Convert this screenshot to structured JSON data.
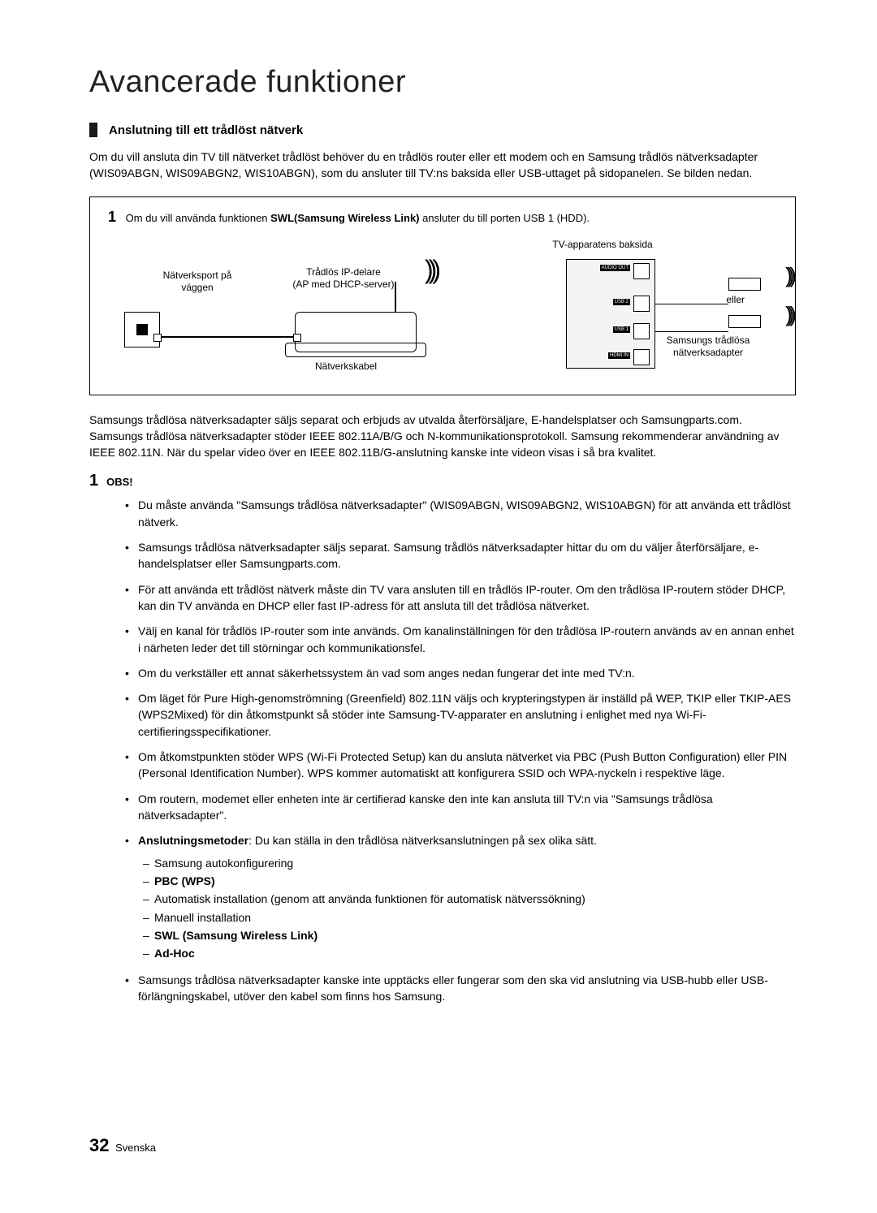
{
  "page": {
    "title": "Avancerade funktioner",
    "section_title": "Anslutning till ett trådlöst nätverk",
    "intro": "Om du vill ansluta din TV till nätverket trådlöst behöver du en trådlös router eller ett modem och en Samsung trådlös nätverksadapter (WIS09ABGN, WIS09ABGN2, WIS10ABGN), som du ansluter till TV:ns baksida eller USB-uttaget på sidopanelen. Se bilden nedan."
  },
  "diagram": {
    "note_num": "1",
    "note_pre": "Om du vill använda funktionen ",
    "note_bold": "SWL(Samsung Wireless Link)",
    "note_post": " ansluter du till porten USB 1 (HDD).",
    "label_tv_back": "TV-apparatens baksida",
    "label_wall_port": "Nätverksport på väggen",
    "label_router_1": "Trådlös IP-delare",
    "label_router_2": "(AP med DHCP-server)",
    "label_cable": "Nätverkskabel",
    "label_or": "eller",
    "label_adapter_1": "Samsungs trådlösa",
    "label_adapter_2": "nätverksadapter",
    "port_audio": "AUDIO OUT",
    "port_usb2": "USB 2",
    "port_usb1": "USB 1",
    "port_hdmi": "HDMI IN"
  },
  "mid_para": "Samsungs trådlösa nätverksadapter säljs separat och erbjuds av utvalda återförsäljare, E-handelsplatser och Samsungparts.com. Samsungs trådlösa nätverksadapter stöder IEEE 802.11A/B/G och N-kommunikationsprotokoll. Samsung rekommenderar användning av IEEE 802.11N. När du spelar video över en IEEE 802.11B/G-anslutning kanske inte videon visas i så bra kvalitet.",
  "obs": {
    "num": "1",
    "label": "OBS!"
  },
  "bullets": [
    {
      "text": "Du måste använda \"Samsungs trådlösa nätverksadapter\" (WIS09ABGN, WIS09ABGN2, WIS10ABGN) för att använda ett trådlöst nätverk."
    },
    {
      "text": "Samsungs trådlösa nätverksadapter säljs separat. Samsung trådlös nätverksadapter hittar du om du väljer återförsäljare, e-handelsplatser eller Samsungparts.com."
    },
    {
      "text": "För att använda ett trådlöst nätverk måste din TV vara ansluten till en trådlös IP-router. Om den trådlösa IP-routern stöder DHCP, kan din TV använda en DHCP eller fast IP-adress för att ansluta till det trådlösa nätverket."
    },
    {
      "text": "Välj en kanal för trådlös IP-router som inte används. Om kanalinställningen för den trådlösa IP-routern används av en annan enhet i närheten leder det till störningar och kommunikationsfel."
    },
    {
      "text": "Om du verkställer ett annat säkerhetssystem än vad som anges nedan fungerar det inte med TV:n."
    },
    {
      "text": "Om läget för Pure High-genomströmning (Greenfield) 802.11N väljs och krypteringstypen är inställd på WEP, TKIP eller TKIP-AES (WPS2Mixed) för din åtkomstpunkt så stöder inte Samsung-TV-apparater en anslutning i enlighet med nya Wi-Fi-certifieringsspecifikationer."
    },
    {
      "text": "Om åtkomstpunkten stöder WPS (Wi-Fi Protected Setup) kan du ansluta nätverket via PBC (Push Button Configuration) eller PIN (Personal Identification Number). WPS kommer automatiskt att konfigurera SSID och WPA-nyckeln i respektive läge."
    },
    {
      "text": "Om routern, modemet eller enheten inte är certifierad kanske den inte kan ansluta till TV:n via \"Samsungs trådlösa nätverksadapter\"."
    },
    {
      "bold_lead": "Anslutningsmetoder",
      "text_after": ": Du kan ställa in den trådlösa nätverksanslutningen på sex olika sätt.",
      "subs": [
        {
          "text": "Samsung autokonfigurering",
          "bold": false
        },
        {
          "text": "PBC (WPS)",
          "bold": true
        },
        {
          "text": "Automatisk installation (genom att använda funktionen för automatisk nätverssökning)",
          "bold": false
        },
        {
          "text": "Manuell installation",
          "bold": false
        },
        {
          "text": "SWL (Samsung Wireless Link)",
          "bold": true
        },
        {
          "text": "Ad-Hoc",
          "bold": true
        }
      ]
    },
    {
      "text": "Samsungs trådlösa nätverksadapter kanske inte upptäcks eller fungerar som den ska vid anslutning via USB-hubb eller USB-förlängningskabel, utöver den kabel som finns hos Samsung."
    }
  ],
  "footer": {
    "page_number": "32",
    "lang": "Svenska"
  },
  "colors": {
    "text": "#000000",
    "bg": "#ffffff",
    "marker": "#1a1a1a"
  }
}
